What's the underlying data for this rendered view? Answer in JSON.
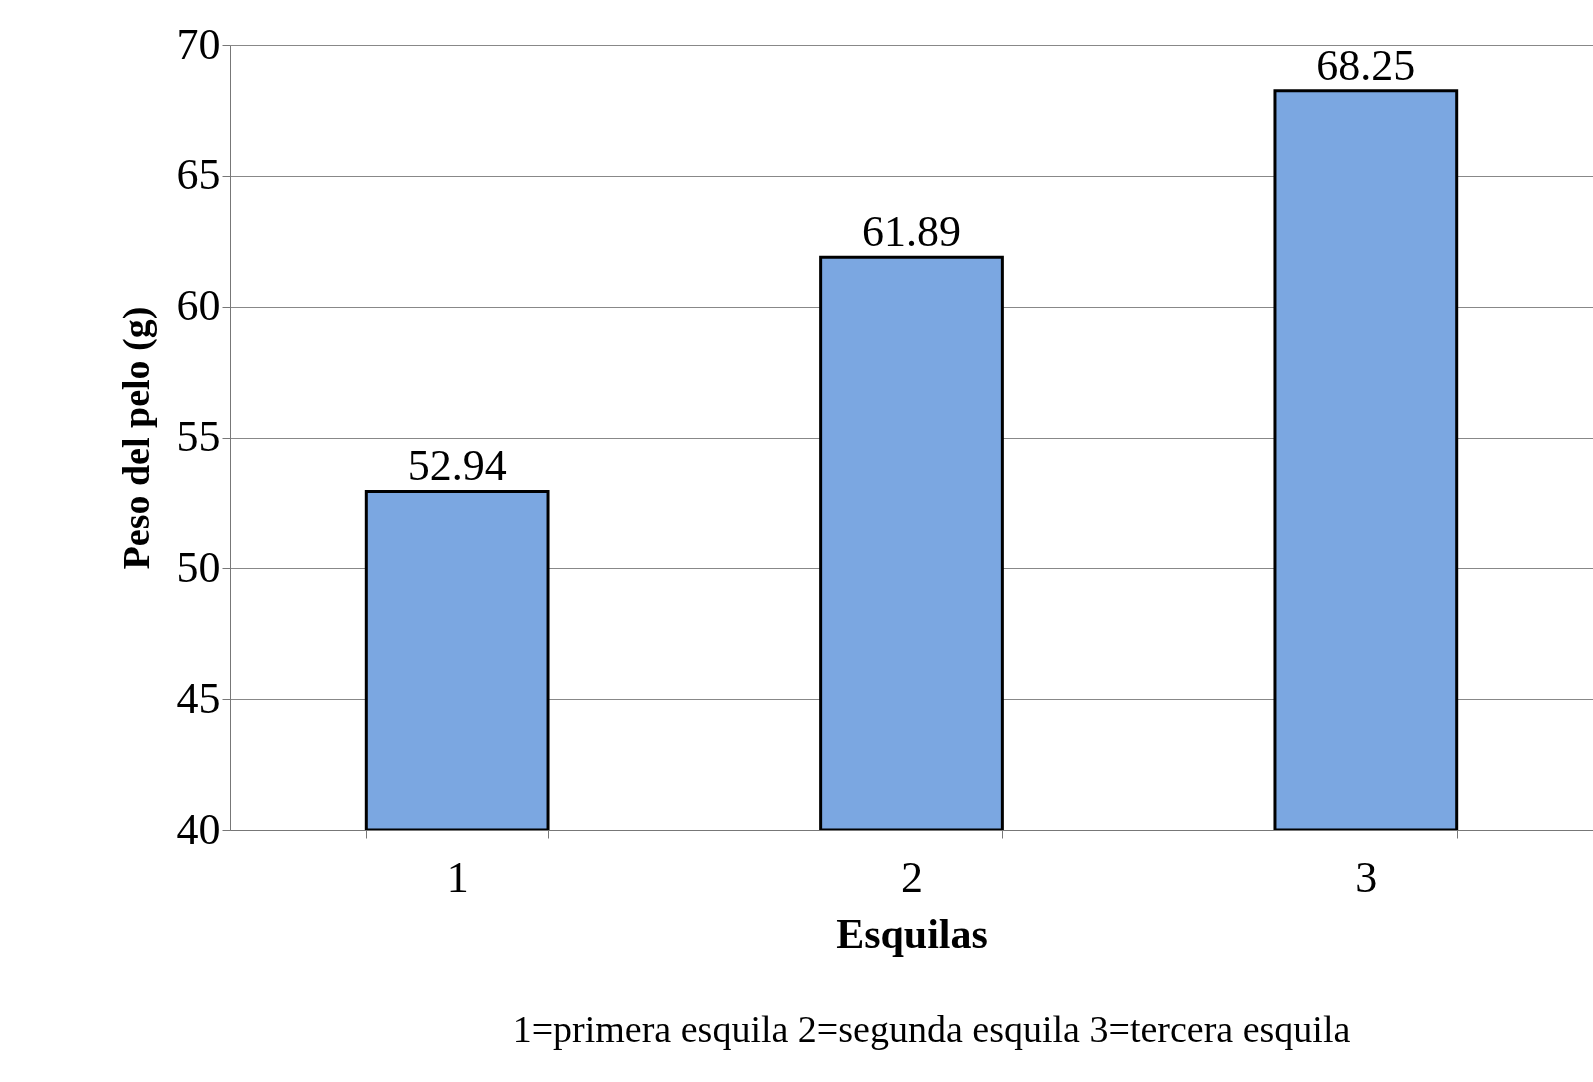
{
  "chart_data": {
    "type": "bar",
    "categories": [
      "1",
      "2",
      "3"
    ],
    "values": [
      52.94,
      61.89,
      68.25
    ],
    "color": "#7ba7e1",
    "xlabel": "Esquilas",
    "ylabel": "Peso del pelo (g)",
    "ylim": [
      40,
      70
    ],
    "yticks": [
      40,
      45,
      50,
      55,
      60,
      65,
      70
    ],
    "grid": "y",
    "data_labels": true,
    "annotations": [
      "1=primera esquila  2=segunda esquila  3=tercera esquila"
    ]
  }
}
